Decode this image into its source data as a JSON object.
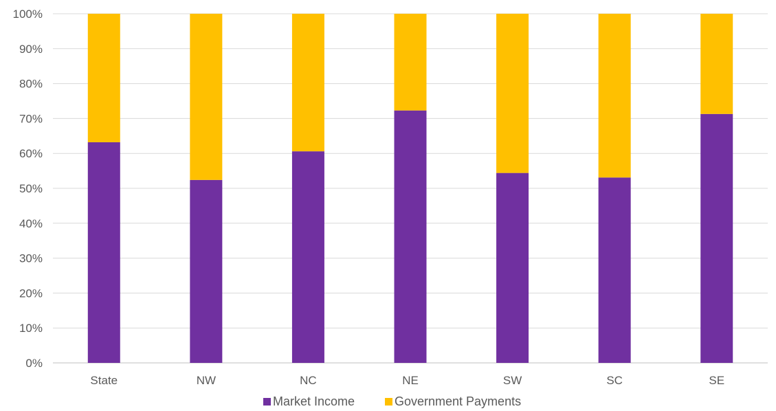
{
  "chart_data": {
    "type": "bar",
    "stacked": true,
    "categories": [
      "State",
      "NW",
      "NC",
      "NE",
      "SW",
      "SC",
      "SE"
    ],
    "series": [
      {
        "name": "Market Income",
        "color": "#7030A0",
        "values": [
          63.2,
          52.4,
          60.6,
          72.3,
          54.4,
          53.1,
          71.3
        ]
      },
      {
        "name": "Government Payments",
        "color": "#FFC000",
        "values": [
          36.8,
          47.6,
          39.4,
          27.7,
          45.6,
          46.9,
          28.7
        ]
      }
    ],
    "yticks": [
      "0%",
      "10%",
      "20%",
      "30%",
      "40%",
      "50%",
      "60%",
      "70%",
      "80%",
      "90%",
      "100%"
    ],
    "ylim": [
      0,
      100
    ],
    "grid": true,
    "legend_position": "bottom",
    "gridline_color": "#D9D9D9",
    "axis_line_color": "#BFBFBF"
  }
}
